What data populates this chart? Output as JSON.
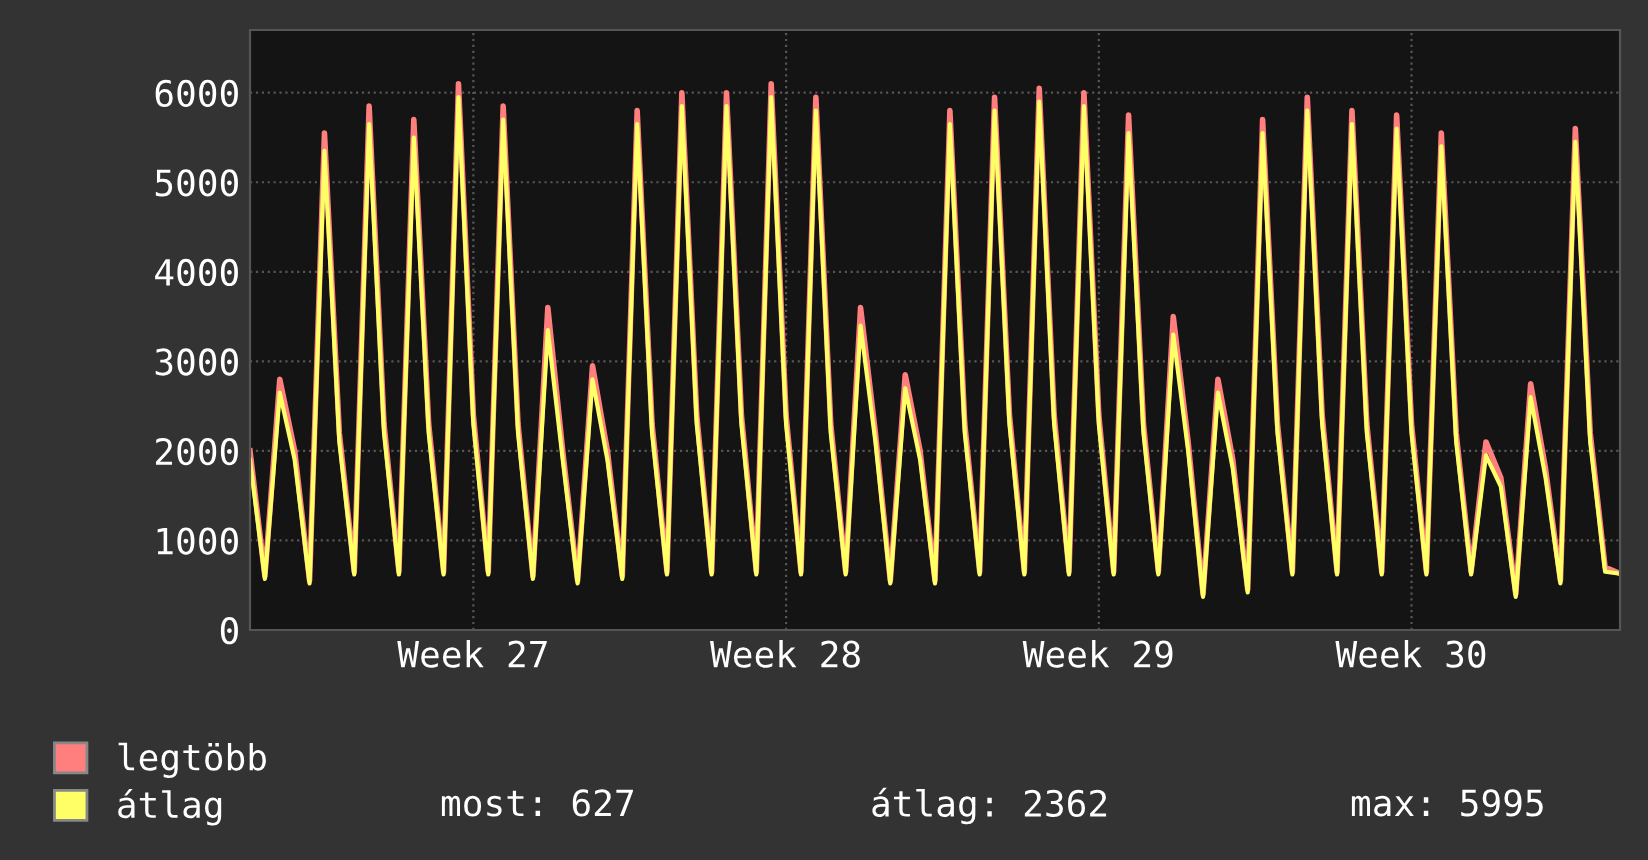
{
  "chart_data": {
    "type": "line",
    "categories": [
      null,
      null,
      null,
      null,
      null,
      null,
      null,
      null,
      null,
      null,
      null,
      null,
      null,
      null,
      null,
      "Week 27",
      null,
      null,
      null,
      null,
      null,
      null,
      null,
      null,
      null,
      null,
      null,
      null,
      null,
      null,
      null,
      null,
      null,
      null,
      null,
      null,
      "Week 28",
      null,
      null,
      null,
      null,
      null,
      null,
      null,
      null,
      null,
      null,
      null,
      null,
      null,
      null,
      null,
      null,
      null,
      null,
      null,
      null,
      "Week 29",
      null,
      null,
      null,
      null,
      null,
      null,
      null,
      null,
      null,
      null,
      null,
      null,
      null,
      null,
      null,
      null,
      null,
      null,
      null,
      null,
      "Week 30",
      null,
      null,
      null,
      null,
      null,
      null,
      null,
      null,
      null,
      null,
      null,
      null,
      null,
      null
    ],
    "series": [
      {
        "name": "legtöbb",
        "color": "#ff7f7f",
        "values": [
          2000,
          600,
          2800,
          2000,
          550,
          5550,
          2200,
          650,
          5850,
          2300,
          650,
          5700,
          2300,
          650,
          6100,
          2400,
          650,
          5850,
          2300,
          600,
          3600,
          2000,
          550,
          2950,
          2000,
          600,
          5800,
          2300,
          650,
          6000,
          2400,
          650,
          6000,
          2400,
          650,
          6100,
          2400,
          650,
          5950,
          2300,
          650,
          3600,
          2200,
          550,
          2850,
          2000,
          550,
          5800,
          2300,
          650,
          5950,
          2400,
          650,
          6050,
          2400,
          650,
          6000,
          2400,
          650,
          5750,
          2300,
          650,
          3500,
          2100,
          400,
          2800,
          1900,
          450,
          5700,
          2300,
          650,
          5950,
          2400,
          650,
          5800,
          2300,
          650,
          5750,
          2300,
          650,
          5550,
          2200,
          650,
          2100,
          1700,
          400,
          2750,
          1800,
          550,
          5600,
          2200,
          700,
          630
        ]
      },
      {
        "name": "átlag",
        "color": "#ffff66",
        "values": [
          1900,
          570,
          2650,
          1900,
          520,
          5350,
          2100,
          620,
          5650,
          2200,
          620,
          5500,
          2200,
          620,
          5950,
          2300,
          620,
          5700,
          2200,
          570,
          3350,
          1900,
          520,
          2800,
          1900,
          570,
          5650,
          2200,
          620,
          5850,
          2300,
          620,
          5850,
          2300,
          620,
          5950,
          2300,
          620,
          5800,
          2200,
          620,
          3400,
          2100,
          520,
          2700,
          1900,
          520,
          5650,
          2200,
          620,
          5800,
          2300,
          620,
          5900,
          2300,
          620,
          5850,
          2300,
          620,
          5550,
          2200,
          620,
          3300,
          2000,
          370,
          2650,
          1800,
          420,
          5550,
          2200,
          620,
          5800,
          2300,
          620,
          5650,
          2200,
          620,
          5600,
          2200,
          620,
          5400,
          2100,
          620,
          1950,
          1600,
          370,
          2600,
          1700,
          520,
          5450,
          2100,
          650,
          630
        ]
      }
    ],
    "ylim": [
      0,
      6700
    ],
    "yticks": [
      0,
      1000,
      2000,
      3000,
      4000,
      5000,
      6000
    ],
    "grid": true,
    "legend": "bottom left",
    "annotations": [
      "most: 627",
      "átlag: 2362",
      "max: 5995"
    ]
  }
}
